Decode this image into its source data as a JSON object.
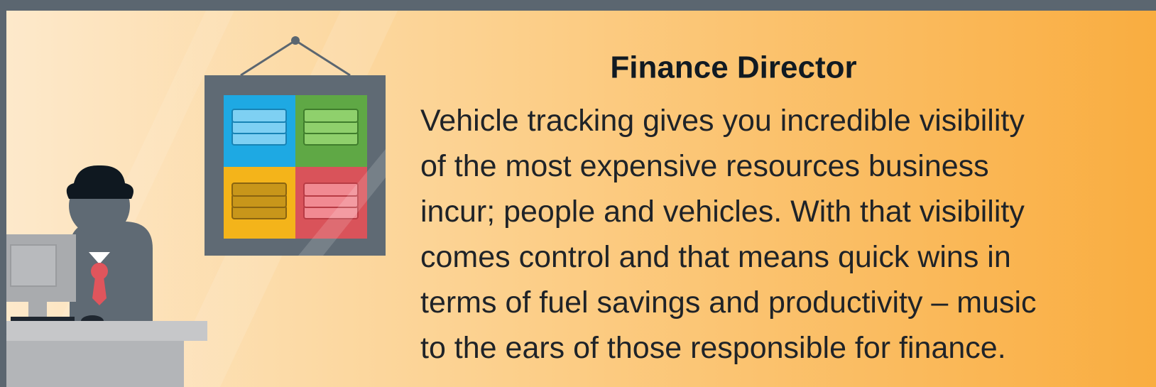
{
  "title": "Finance Director",
  "body_lines": [
    "Vehicle tracking gives you incredible visibility",
    "of the most expensive resources business",
    "incur; people and vehicles. With that visibility",
    "comes control and that means quick wins in",
    "terms of fuel savings and productivity – music",
    "to the ears of those responsible for finance."
  ]
}
